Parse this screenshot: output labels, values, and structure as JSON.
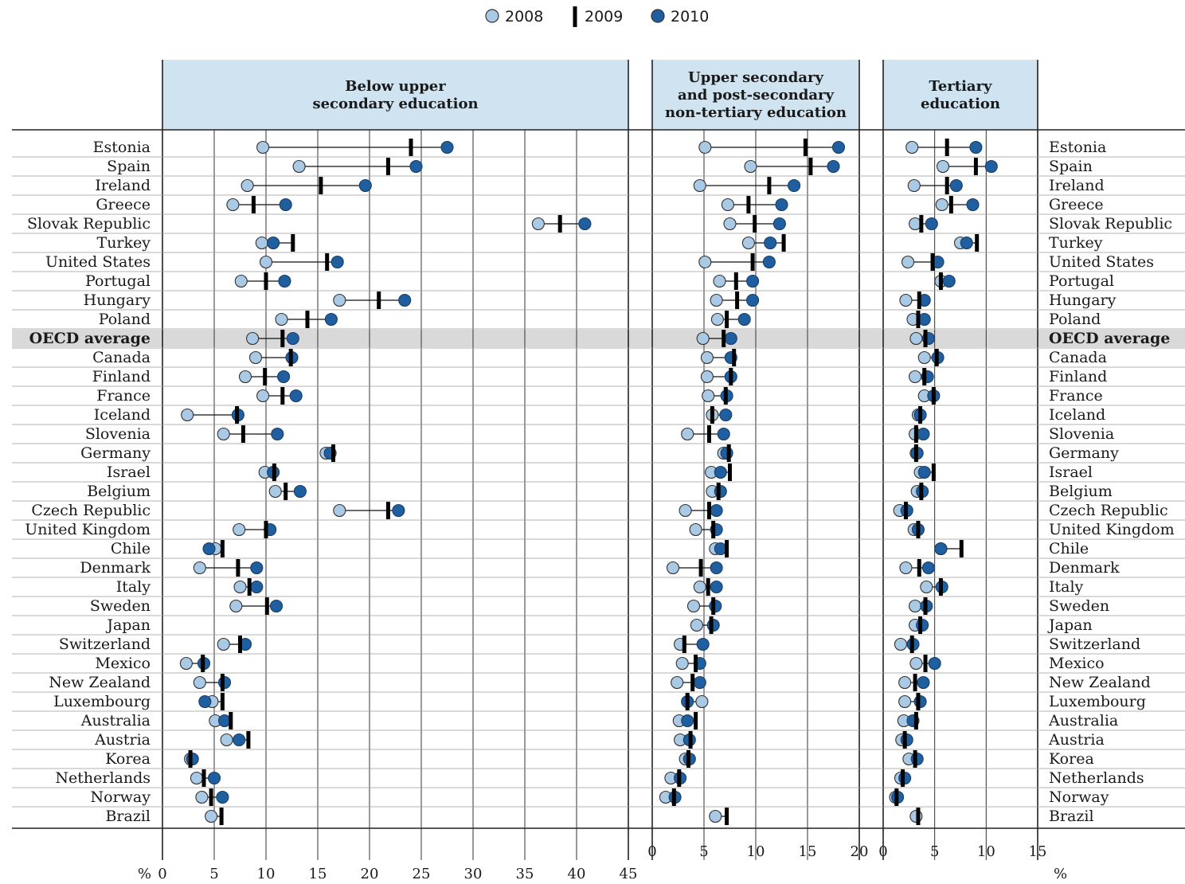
{
  "chart_data": {
    "type": "dot-range",
    "legend": [
      {
        "name": "2008",
        "color": "#a9c9e4"
      },
      {
        "name": "2009",
        "color": "#000000"
      },
      {
        "name": "2010",
        "color": "#1f5fa0"
      }
    ],
    "unit_label": "%",
    "panels": [
      {
        "title_lines": [
          "Below upper",
          "secondary education"
        ],
        "xlim": [
          0,
          45
        ],
        "ticks": [
          0,
          5,
          10,
          15,
          20,
          25,
          30,
          35,
          40,
          45
        ]
      },
      {
        "title_lines": [
          "Upper secondary",
          "and post-secondary",
          "non-tertiary education"
        ],
        "xlim": [
          0,
          20
        ],
        "ticks": [
          0,
          5,
          10,
          15,
          20
        ]
      },
      {
        "title_lines": [
          "Tertiary",
          "education"
        ],
        "xlim": [
          0,
          15
        ],
        "ticks": [
          0,
          5,
          10,
          15
        ]
      }
    ],
    "countries": [
      {
        "name": "Estonia",
        "values": [
          [
            9.7,
            24.0,
            27.5
          ],
          [
            5.1,
            14.8,
            18.0
          ],
          [
            2.8,
            6.2,
            9.0
          ]
        ]
      },
      {
        "name": "Spain",
        "values": [
          [
            13.2,
            21.8,
            24.5
          ],
          [
            9.5,
            15.3,
            17.5
          ],
          [
            5.8,
            9.0,
            10.5
          ]
        ]
      },
      {
        "name": "Ireland",
        "values": [
          [
            8.2,
            15.3,
            19.6
          ],
          [
            4.6,
            11.3,
            13.7
          ],
          [
            3.0,
            6.2,
            7.1
          ]
        ]
      },
      {
        "name": "Greece",
        "values": [
          [
            6.8,
            8.8,
            11.9
          ],
          [
            7.3,
            9.3,
            12.5
          ],
          [
            5.7,
            6.6,
            8.7
          ]
        ]
      },
      {
        "name": "Slovak Republic",
        "values": [
          [
            36.3,
            38.4,
            40.8
          ],
          [
            7.5,
            9.9,
            12.3
          ],
          [
            3.1,
            3.7,
            4.7
          ]
        ]
      },
      {
        "name": "Turkey",
        "values": [
          [
            9.6,
            12.6,
            10.7
          ],
          [
            9.3,
            12.7,
            11.4
          ],
          [
            7.5,
            9.1,
            8.1
          ]
        ]
      },
      {
        "name": "United States",
        "values": [
          [
            10.0,
            15.9,
            16.9
          ],
          [
            5.1,
            9.7,
            11.3
          ],
          [
            2.4,
            4.8,
            5.3
          ]
        ]
      },
      {
        "name": "Portugal",
        "values": [
          [
            7.6,
            10.0,
            11.8
          ],
          [
            6.5,
            8.1,
            9.7
          ],
          [
            5.6,
            5.6,
            6.4
          ]
        ]
      },
      {
        "name": "Hungary",
        "values": [
          [
            17.1,
            20.9,
            23.4
          ],
          [
            6.2,
            8.2,
            9.7
          ],
          [
            2.2,
            3.5,
            4.0
          ]
        ]
      },
      {
        "name": "Poland",
        "values": [
          [
            11.5,
            14.0,
            16.3
          ],
          [
            6.3,
            7.2,
            8.9
          ],
          [
            2.9,
            3.4,
            4.0
          ]
        ]
      },
      {
        "name": "OECD average",
        "values": [
          [
            8.7,
            11.6,
            12.6
          ],
          [
            4.9,
            6.9,
            7.6
          ],
          [
            3.2,
            4.1,
            4.4
          ]
        ]
      },
      {
        "name": "Canada",
        "values": [
          [
            9.0,
            12.4,
            12.5
          ],
          [
            5.3,
            7.9,
            7.6
          ],
          [
            4.0,
            5.2,
            5.3
          ]
        ]
      },
      {
        "name": "Finland",
        "values": [
          [
            8.0,
            9.9,
            11.7
          ],
          [
            5.3,
            7.6,
            7.6
          ],
          [
            3.1,
            4.0,
            4.3
          ]
        ]
      },
      {
        "name": "France",
        "values": [
          [
            9.7,
            11.6,
            12.9
          ],
          [
            5.4,
            7.1,
            7.2
          ],
          [
            4.0,
            4.9,
            4.9
          ]
        ]
      },
      {
        "name": "Iceland",
        "values": [
          [
            2.4,
            7.2,
            7.3
          ],
          [
            5.8,
            5.8,
            7.1
          ],
          [
            3.4,
            3.6,
            3.6
          ]
        ]
      },
      {
        "name": "Slovenia",
        "values": [
          [
            5.9,
            7.8,
            11.1
          ],
          [
            3.4,
            5.5,
            6.9
          ],
          [
            3.1,
            3.2,
            3.9
          ]
        ]
      },
      {
        "name": "Germany",
        "values": [
          [
            15.8,
            16.5,
            16.2
          ],
          [
            6.9,
            7.4,
            7.2
          ],
          [
            3.2,
            3.2,
            3.3
          ]
        ]
      },
      {
        "name": "Israel",
        "values": [
          [
            9.9,
            10.8,
            10.7
          ],
          [
            5.7,
            7.5,
            6.6
          ],
          [
            3.6,
            4.9,
            4.0
          ]
        ]
      },
      {
        "name": "Belgium",
        "values": [
          [
            10.9,
            11.9,
            13.3
          ],
          [
            5.8,
            6.4,
            6.6
          ],
          [
            3.3,
            3.7,
            3.8
          ]
        ]
      },
      {
        "name": "Czech Republic",
        "values": [
          [
            17.1,
            21.8,
            22.8
          ],
          [
            3.2,
            5.5,
            6.2
          ],
          [
            1.6,
            2.2,
            2.3
          ]
        ]
      },
      {
        "name": "United Kingdom",
        "values": [
          [
            7.4,
            10.0,
            10.4
          ],
          [
            4.2,
            5.9,
            6.2
          ],
          [
            3.0,
            3.4,
            3.4
          ]
        ]
      },
      {
        "name": "Chile",
        "values": [
          [
            5.1,
            5.8,
            4.5
          ],
          [
            6.1,
            7.2,
            6.6
          ],
          [
            5.6,
            7.6,
            5.6
          ]
        ]
      },
      {
        "name": "Denmark",
        "values": [
          [
            3.6,
            7.3,
            9.1
          ],
          [
            2.0,
            4.7,
            6.2
          ],
          [
            2.2,
            3.5,
            4.4
          ]
        ]
      },
      {
        "name": "Italy",
        "values": [
          [
            7.5,
            8.4,
            9.1
          ],
          [
            4.6,
            5.4,
            6.2
          ],
          [
            4.2,
            5.6,
            5.7
          ]
        ]
      },
      {
        "name": "Sweden",
        "values": [
          [
            7.1,
            10.1,
            11.0
          ],
          [
            4.0,
            5.9,
            6.1
          ],
          [
            3.1,
            4.1,
            4.2
          ]
        ]
      },
      {
        "name": "Japan",
        "values": [
          [
            null,
            null,
            null
          ],
          [
            4.3,
            5.7,
            5.9
          ],
          [
            3.1,
            3.6,
            3.8
          ]
        ]
      },
      {
        "name": "Switzerland",
        "values": [
          [
            5.9,
            7.5,
            8.0
          ],
          [
            2.7,
            3.1,
            4.9
          ],
          [
            1.7,
            2.8,
            2.9
          ]
        ]
      },
      {
        "name": "Mexico",
        "values": [
          [
            2.3,
            3.9,
            4.0
          ],
          [
            2.9,
            4.2,
            4.6
          ],
          [
            3.2,
            4.1,
            5.0
          ]
        ]
      },
      {
        "name": "New Zealand",
        "values": [
          [
            3.6,
            5.8,
            6.0
          ],
          [
            2.4,
            3.9,
            4.6
          ],
          [
            2.1,
            3.1,
            3.9
          ]
        ]
      },
      {
        "name": "Luxembourg",
        "values": [
          [
            4.8,
            5.8,
            4.1
          ],
          [
            4.8,
            3.4,
            3.4
          ],
          [
            2.1,
            3.4,
            3.6
          ]
        ]
      },
      {
        "name": "Australia",
        "values": [
          [
            5.1,
            6.6,
            6.0
          ],
          [
            2.6,
            4.2,
            3.4
          ],
          [
            2.0,
            3.2,
            2.9
          ]
        ]
      },
      {
        "name": "Austria",
        "values": [
          [
            6.2,
            8.3,
            7.4
          ],
          [
            2.7,
            3.7,
            3.6
          ],
          [
            1.8,
            2.1,
            2.3
          ]
        ]
      },
      {
        "name": "Korea",
        "values": [
          [
            2.7,
            2.7,
            2.9
          ],
          [
            3.2,
            3.5,
            3.6
          ],
          [
            2.5,
            3.1,
            3.3
          ]
        ]
      },
      {
        "name": "Netherlands",
        "values": [
          [
            3.3,
            4.0,
            5.0
          ],
          [
            1.8,
            2.6,
            2.7
          ],
          [
            1.7,
            1.9,
            2.1
          ]
        ]
      },
      {
        "name": "Norway",
        "values": [
          [
            3.8,
            4.7,
            5.8
          ],
          [
            1.3,
            2.1,
            2.2
          ],
          [
            1.2,
            1.3,
            1.4
          ]
        ]
      },
      {
        "name": "Brazil",
        "values": [
          [
            4.7,
            5.7,
            null
          ],
          [
            6.1,
            7.2,
            null
          ],
          [
            3.2,
            3.4,
            null
          ]
        ]
      }
    ]
  }
}
